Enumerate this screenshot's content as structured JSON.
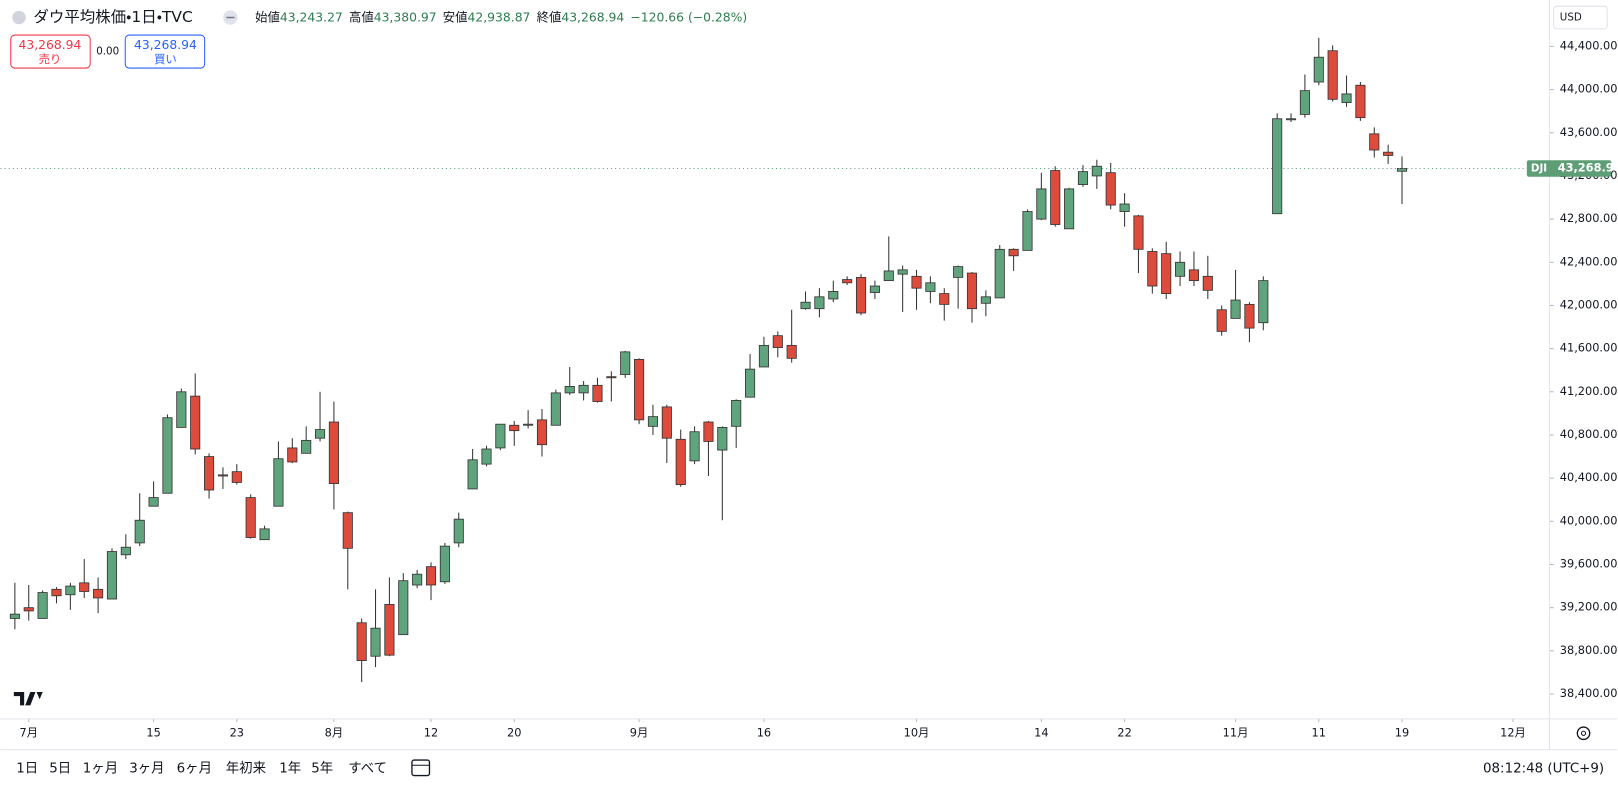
{
  "header": {
    "title": "ダウ平均株価・1日・TVC",
    "ohlc": [
      {
        "label": "始値",
        "value": "43,243.27"
      },
      {
        "label": "高値",
        "value": "43,380.97"
      },
      {
        "label": "安値",
        "value": "42,938.87"
      },
      {
        "label": "終値",
        "value": "43,268.94"
      }
    ],
    "change": "−120.66 (−0.28%)"
  },
  "trade": {
    "sell_price": "43,268.94",
    "sell_label": "売り",
    "spread": "0.00",
    "buy_price": "43,268.94",
    "buy_label": "買い"
  },
  "currency": "USD",
  "toolbar": {
    "ranges": [
      "1日",
      "5日",
      "1ヶ月",
      "3ヶ月",
      "6ヶ月",
      "年初来",
      "1年",
      "5年",
      "すべて"
    ],
    "clock": "08:12:48 (UTC+9)"
  },
  "chart_data": {
    "type": "candlestick",
    "up_color": "#5fa47c",
    "down_color": "#dd4b3d",
    "wick_color": "#333333",
    "open": [
      39100,
      39200,
      39100,
      39370,
      39320,
      39430,
      39370,
      39280,
      39690,
      39800,
      40140,
      40260,
      40870,
      41160,
      40600,
      40430,
      40460,
      40220,
      39830,
      40140,
      40680,
      40630,
      40770,
      40920,
      40080,
      39060,
      38750,
      39230,
      38950,
      39410,
      39580,
      39440,
      39800,
      40300,
      40530,
      40680,
      40890,
      40890,
      40940,
      40890,
      41190,
      41190,
      41260,
      41340,
      41360,
      41500,
      40880,
      41060,
      40760,
      40560,
      40920,
      40660,
      40880,
      41150,
      41430,
      41720,
      41630,
      41970,
      41970,
      42060,
      42240,
      42260,
      42120,
      42230,
      42290,
      42270,
      42130,
      42110,
      42260,
      42300,
      42020,
      42070,
      42520,
      42510,
      42800,
      43250,
      42710,
      43120,
      43200,
      43230,
      42870,
      42830,
      42500,
      42480,
      42270,
      42330,
      42270,
      41960,
      41880,
      42010,
      41840,
      42850,
      43720,
      43770,
      44070,
      44360,
      43880,
      44040,
      43590,
      43420,
      43243.27
    ],
    "high": [
      39430,
      39410,
      39360,
      39390,
      39430,
      39650,
      39480,
      39750,
      39880,
      40260,
      40370,
      40990,
      41230,
      41370,
      40630,
      40500,
      40530,
      40250,
      39960,
      40740,
      40770,
      40880,
      41200,
      41110,
      40090,
      39100,
      39370,
      39480,
      39520,
      39550,
      39620,
      39800,
      40080,
      40670,
      40700,
      40900,
      40930,
      41030,
      41040,
      41220,
      41430,
      41300,
      41330,
      41390,
      41580,
      41510,
      41080,
      41080,
      40850,
      40880,
      40930,
      40880,
      41130,
      41550,
      41710,
      41760,
      41960,
      42130,
      42160,
      42230,
      42270,
      42290,
      42230,
      42640,
      42370,
      42330,
      42270,
      42160,
      42370,
      42310,
      42140,
      42560,
      42530,
      42890,
      43230,
      43290,
      43090,
      43300,
      43350,
      43320,
      43040,
      42840,
      42530,
      42590,
      42500,
      42500,
      42460,
      42000,
      42330,
      42030,
      42270,
      43780,
      43780,
      44140,
      44480,
      44410,
      44130,
      44070,
      43650,
      43490,
      43380.97
    ],
    "low": [
      39000,
      39080,
      39100,
      39240,
      39180,
      39290,
      39150,
      39280,
      39650,
      39770,
      40140,
      40260,
      40870,
      40620,
      40210,
      40300,
      40340,
      39840,
      39830,
      40140,
      40540,
      40630,
      40740,
      40110,
      39370,
      38510,
      38650,
      38750,
      38950,
      39380,
      39270,
      39420,
      39760,
      40300,
      40510,
      40660,
      40700,
      40860,
      40600,
      40890,
      41170,
      41120,
      41100,
      41110,
      41330,
      40900,
      40800,
      40540,
      40320,
      40530,
      40420,
      40010,
      40680,
      41150,
      41430,
      41520,
      41470,
      41960,
      41890,
      42030,
      42190,
      41910,
      42060,
      42230,
      41940,
      41960,
      42020,
      41860,
      41970,
      41840,
      41900,
      42070,
      42320,
      42510,
      42790,
      42730,
      42710,
      43100,
      43080,
      42890,
      42730,
      42300,
      42110,
      42060,
      42180,
      42180,
      42060,
      41720,
      41880,
      41660,
      41770,
      42850,
      43700,
      43740,
      44040,
      43890,
      43840,
      43710,
      43370,
      43310,
      42938.87
    ],
    "close": [
      39140,
      39170,
      39340,
      39310,
      39400,
      39350,
      39290,
      39720,
      39760,
      40010,
      40220,
      40960,
      41200,
      40670,
      40290,
      40420,
      40360,
      39850,
      39930,
      40580,
      40550,
      40750,
      40850,
      40350,
      39750,
      38710,
      39010,
      38760,
      39450,
      39510,
      39410,
      39770,
      40020,
      40570,
      40670,
      40900,
      40840,
      40900,
      40710,
      41190,
      41250,
      41260,
      41110,
      41330,
      41570,
      40940,
      40970,
      40770,
      40340,
      40830,
      40740,
      40870,
      41120,
      41410,
      41630,
      41610,
      41510,
      42030,
      42080,
      42130,
      42210,
      41930,
      42180,
      42320,
      42330,
      42160,
      42210,
      42010,
      42360,
      41970,
      42080,
      42520,
      42460,
      42870,
      43080,
      42750,
      43080,
      43240,
      43290,
      42930,
      42940,
      42520,
      42180,
      42110,
      42400,
      42230,
      42140,
      41760,
      42050,
      41790,
      42230,
      43730,
      43730,
      43990,
      44300,
      43910,
      43960,
      43740,
      43440,
      43390,
      43268.94
    ],
    "ylim": [
      38170,
      44830
    ],
    "yticks": [
      {
        "value": 38400,
        "label": "38,400.00"
      },
      {
        "value": 38800,
        "label": "38,800.00"
      },
      {
        "value": 39200,
        "label": "39,200.00"
      },
      {
        "value": 39600,
        "label": "39,600.00"
      },
      {
        "value": 40000,
        "label": "40,000.00"
      },
      {
        "value": 40400,
        "label": "40,400.00"
      },
      {
        "value": 40800,
        "label": "40,800.00"
      },
      {
        "value": 41200,
        "label": "41,200.00"
      },
      {
        "value": 41600,
        "label": "41,600.00"
      },
      {
        "value": 42000,
        "label": "42,000.00"
      },
      {
        "value": 42400,
        "label": "42,400.00"
      },
      {
        "value": 42800,
        "label": "42,800.00"
      },
      {
        "value": 43200,
        "label": "43,200.00"
      },
      {
        "value": 43600,
        "label": "43,600.00"
      },
      {
        "value": 44000,
        "label": "44,000.00"
      },
      {
        "value": 44400,
        "label": "44,400.00"
      }
    ],
    "xticks": [
      {
        "value": 1,
        "label": "7月"
      },
      {
        "value": 10,
        "label": "15"
      },
      {
        "value": 16,
        "label": "23"
      },
      {
        "value": 23,
        "label": "8月"
      },
      {
        "value": 30,
        "label": "12"
      },
      {
        "value": 36,
        "label": "20"
      },
      {
        "value": 45,
        "label": "9月"
      },
      {
        "value": 54,
        "label": "16"
      },
      {
        "value": 65,
        "label": "10月"
      },
      {
        "value": 74,
        "label": "14"
      },
      {
        "value": 80,
        "label": "22"
      },
      {
        "value": 88,
        "label": "11月"
      },
      {
        "value": 94,
        "label": "11"
      },
      {
        "value": 100,
        "label": "19"
      },
      {
        "value": 108,
        "label": "12月"
      }
    ],
    "price_line": {
      "symbol": "DJI",
      "value": 43268.94,
      "label": "43,268.94",
      "color": "#5d9e77"
    }
  }
}
